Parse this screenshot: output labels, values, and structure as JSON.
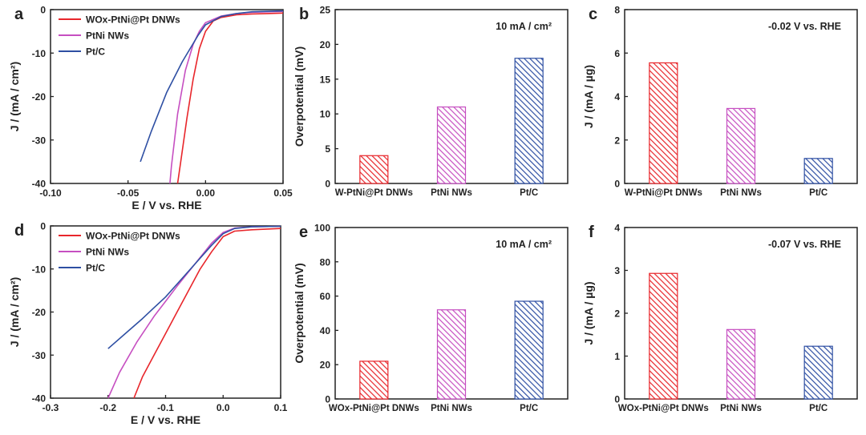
{
  "colors": {
    "red": "#e8262b",
    "magenta": "#c64fc1",
    "blue": "#2e4fa3",
    "axis": "#222222"
  },
  "chart_data": [
    {
      "panel": "a",
      "type": "line",
      "xlabel": "E / V vs. RHE",
      "ylabel": "J / (mA / cm²)",
      "xlim": [
        -0.1,
        0.05
      ],
      "ylim": [
        -40,
        0
      ],
      "xticks": [
        "-0.10",
        "-0.05",
        "0.00",
        "0.05"
      ],
      "yticks": [
        "0",
        "-10",
        "-20",
        "-30",
        "-40"
      ],
      "xtick_values": [
        -0.1,
        -0.05,
        0.0,
        0.05
      ],
      "ytick_values": [
        0,
        -10,
        -20,
        -30,
        -40
      ],
      "legend": "top-left",
      "series": [
        {
          "name": "WOx-PtNi@Pt DNWs",
          "color": "red",
          "x": [
            -0.018,
            -0.016,
            -0.012,
            -0.008,
            -0.004,
            0.0,
            0.005,
            0.01,
            0.02,
            0.03,
            0.04,
            0.05
          ],
          "y": [
            -40,
            -35,
            -25,
            -16,
            -9,
            -5,
            -2.6,
            -1.8,
            -1.2,
            -1.0,
            -0.9,
            -0.8
          ]
        },
        {
          "name": "PtNi NWs",
          "color": "magenta",
          "x": [
            -0.023,
            -0.022,
            -0.018,
            -0.013,
            -0.008,
            -0.004,
            0.0,
            0.01,
            0.02,
            0.03,
            0.05
          ],
          "y": [
            -40,
            -36,
            -24,
            -14,
            -8,
            -5,
            -3,
            -1.5,
            -0.9,
            -0.6,
            -0.4
          ]
        },
        {
          "name": "Pt/C",
          "color": "blue",
          "x": [
            -0.042,
            -0.035,
            -0.025,
            -0.015,
            -0.005,
            0.0,
            0.01,
            0.02,
            0.03,
            0.05
          ],
          "y": [
            -35,
            -28,
            -19,
            -12,
            -6,
            -3.5,
            -1.6,
            -0.9,
            -0.5,
            -0.3
          ]
        }
      ]
    },
    {
      "panel": "b",
      "type": "bar",
      "annotation": "10 mA / cm²",
      "ylabel": "Overpotential (mV)",
      "categories": [
        "W-PtNi@Pt DNWs",
        "PtNi NWs",
        "Pt/C"
      ],
      "values": [
        4,
        11,
        18
      ],
      "ylim": [
        0,
        25
      ],
      "yticks": [
        "0",
        "5",
        "10",
        "15",
        "20",
        "25"
      ],
      "ytick_values": [
        0,
        5,
        10,
        15,
        20,
        25
      ]
    },
    {
      "panel": "c",
      "type": "bar",
      "annotation": "-0.02 V vs. RHE",
      "ylabel": "J / (mA / µg)",
      "categories": [
        "W-PtNi@Pt DNWs",
        "PtNi NWs",
        "Pt/C"
      ],
      "values": [
        5.55,
        3.45,
        1.15
      ],
      "ylim": [
        0,
        8
      ],
      "yticks": [
        "0",
        "2",
        "4",
        "6",
        "8"
      ],
      "ytick_values": [
        0,
        2,
        4,
        6,
        8
      ]
    },
    {
      "panel": "d",
      "type": "line",
      "xlabel": "E / V vs. RHE",
      "ylabel": "J / (mA / cm²)",
      "xlim": [
        -0.3,
        0.1
      ],
      "ylim": [
        -40,
        0
      ],
      "xticks": [
        "-0.3",
        "-0.2",
        "-0.1",
        "0.0",
        "0.1"
      ],
      "yticks": [
        "0",
        "-10",
        "-20",
        "-30",
        "-40"
      ],
      "xtick_values": [
        -0.3,
        -0.2,
        -0.1,
        0.0,
        0.1
      ],
      "ytick_values": [
        0,
        -10,
        -20,
        -30,
        -40
      ],
      "legend": "top-left",
      "series": [
        {
          "name": "WOx-PtNi@Pt DNWs",
          "color": "red",
          "x": [
            -0.155,
            -0.14,
            -0.12,
            -0.1,
            -0.08,
            -0.06,
            -0.04,
            -0.02,
            0.0,
            0.02,
            0.05,
            0.1
          ],
          "y": [
            -40,
            -35,
            -30,
            -25,
            -20,
            -15,
            -10,
            -6,
            -2.5,
            -1.2,
            -0.9,
            -0.6
          ]
        },
        {
          "name": "PtNi NWs",
          "color": "magenta",
          "x": [
            -0.2,
            -0.18,
            -0.15,
            -0.12,
            -0.1,
            -0.08,
            -0.05,
            -0.02,
            0.0,
            0.02,
            0.05,
            0.1
          ],
          "y": [
            -40,
            -34,
            -27,
            -21,
            -17.5,
            -14,
            -9,
            -4,
            -1.5,
            -0.5,
            -0.2,
            -0.1
          ]
        },
        {
          "name": "Pt/C",
          "color": "blue",
          "x": [
            -0.2,
            -0.17,
            -0.14,
            -0.12,
            -0.1,
            -0.08,
            -0.05,
            -0.02,
            0.0,
            0.02,
            0.05,
            0.1
          ],
          "y": [
            -28.5,
            -25,
            -21.5,
            -19,
            -16.5,
            -13.5,
            -9,
            -4.5,
            -1.8,
            -0.6,
            -0.2,
            -0.1
          ]
        }
      ]
    },
    {
      "panel": "e",
      "type": "bar",
      "annotation": "10 mA / cm²",
      "ylabel": "Overpotential (mV)",
      "categories": [
        "WOx-PtNi@Pt DNWs",
        "PtNi NWs",
        "Pt/C"
      ],
      "values": [
        22,
        52,
        57
      ],
      "ylim": [
        0,
        100
      ],
      "yticks": [
        "0",
        "20",
        "40",
        "60",
        "80",
        "100"
      ],
      "ytick_values": [
        0,
        20,
        40,
        60,
        80,
        100
      ]
    },
    {
      "panel": "f",
      "type": "bar",
      "annotation": "-0.07 V vs. RHE",
      "ylabel": "J / (mA / µg)",
      "categories": [
        "WOx-PtNi@Pt DNWs",
        "PtNi NWs",
        "Pt/C"
      ],
      "values": [
        2.93,
        1.62,
        1.23
      ],
      "ylim": [
        0,
        4
      ],
      "yticks": [
        "0",
        "1",
        "2",
        "3",
        "4"
      ],
      "ytick_values": [
        0,
        1,
        2,
        3,
        4
      ]
    }
  ]
}
